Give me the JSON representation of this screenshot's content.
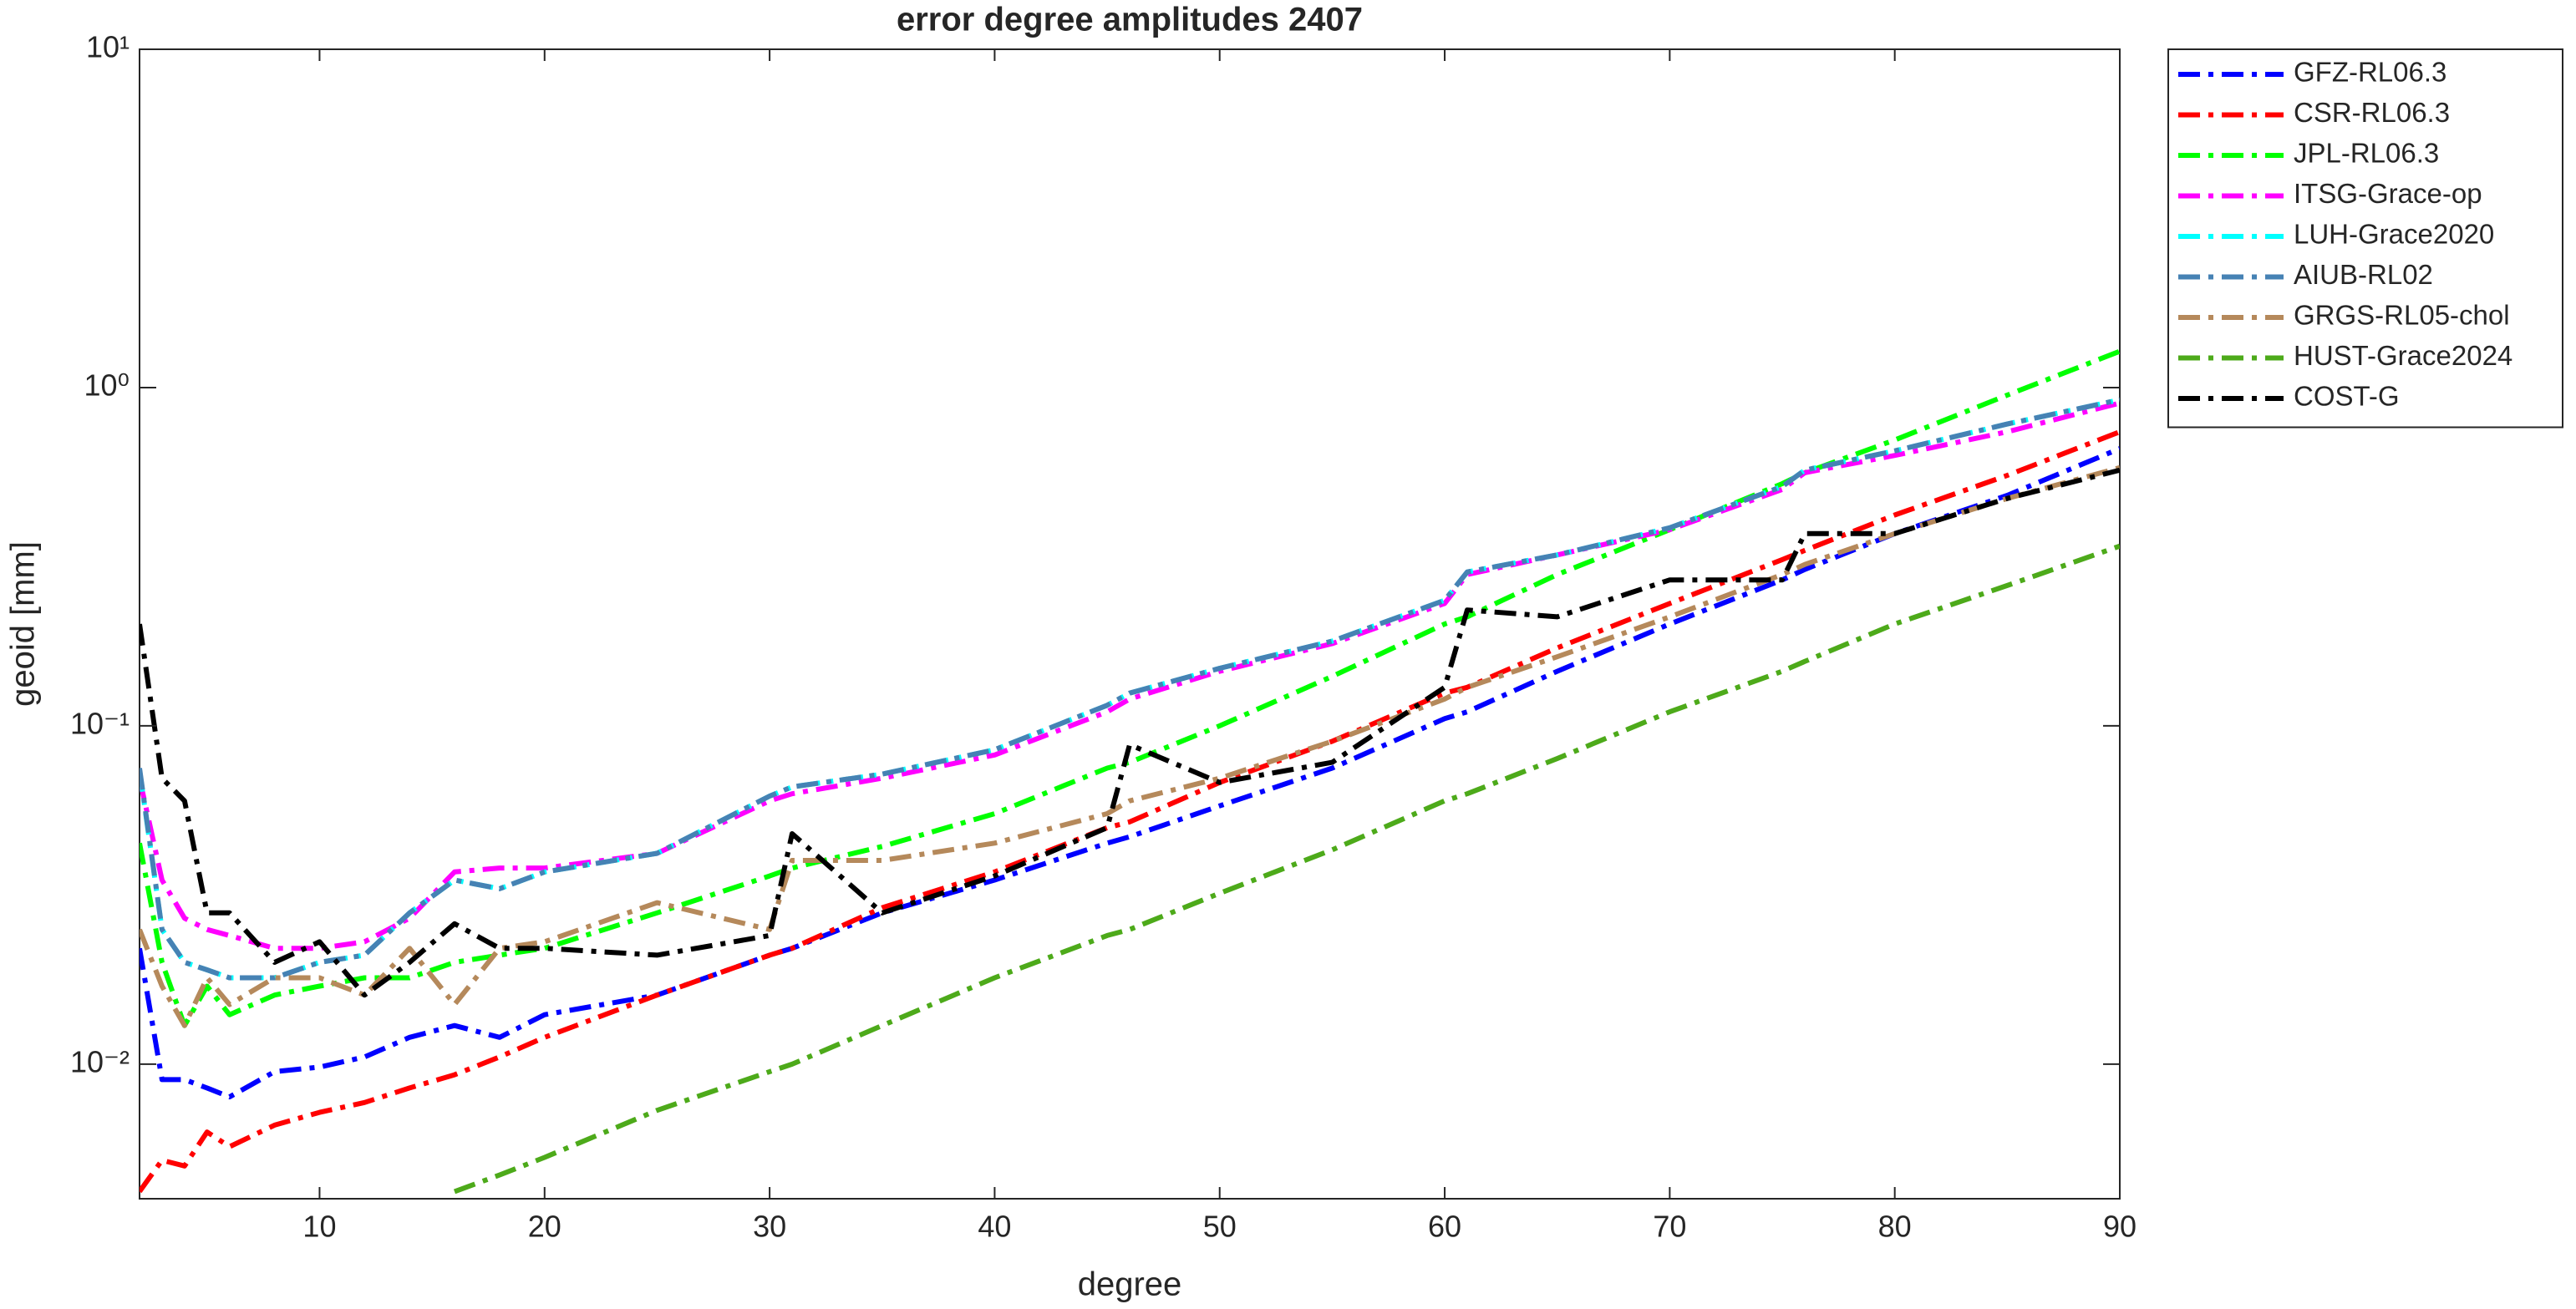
{
  "chart_data": {
    "type": "line",
    "title": "error degree amplitudes 2407",
    "xlabel": "degree",
    "ylabel": "geoid [mm]",
    "x": [
      2,
      3,
      4,
      5,
      6,
      8,
      10,
      12,
      14,
      16,
      18,
      20,
      25,
      30,
      31,
      35,
      40,
      45,
      46,
      50,
      55,
      60,
      61,
      65,
      70,
      75,
      76,
      80,
      85,
      90
    ],
    "xlim": [
      2,
      90
    ],
    "xticks": [
      10,
      20,
      30,
      40,
      50,
      60,
      70,
      80,
      90
    ],
    "ylim": [
      0.004,
      10
    ],
    "yscale": "log",
    "yticks": [
      {
        "value": 0.01,
        "label": "10⁻²"
      },
      {
        "value": 0.1,
        "label": "10⁻¹"
      },
      {
        "value": 1,
        "label": "10⁰"
      },
      {
        "value": 10,
        "label": "10¹"
      }
    ],
    "legend_location": "northeastoutside",
    "series": [
      {
        "name": "GFZ-RL06.3",
        "color": "#0000ff",
        "values": [
          0.022,
          0.009,
          0.009,
          0.0085,
          0.008,
          0.0095,
          0.0098,
          0.0105,
          0.012,
          0.013,
          0.012,
          0.014,
          0.016,
          0.021,
          0.022,
          0.028,
          0.035,
          0.045,
          0.047,
          0.058,
          0.075,
          0.105,
          0.11,
          0.145,
          0.2,
          0.27,
          0.29,
          0.37,
          0.48,
          0.66
        ]
      },
      {
        "name": "CSR-RL06.3",
        "color": "#ff0000",
        "values": [
          0.0042,
          0.0052,
          0.005,
          0.0063,
          0.0057,
          0.0066,
          0.0072,
          0.0077,
          0.0085,
          0.0093,
          0.0105,
          0.012,
          0.016,
          0.021,
          0.022,
          0.029,
          0.037,
          0.05,
          0.052,
          0.068,
          0.09,
          0.125,
          0.13,
          0.17,
          0.23,
          0.31,
          0.33,
          0.42,
          0.55,
          0.74
        ]
      },
      {
        "name": "JPL-RL06.3",
        "color": "#00ff00",
        "values": [
          0.045,
          0.02,
          0.013,
          0.017,
          0.014,
          0.016,
          0.017,
          0.018,
          0.018,
          0.02,
          0.021,
          0.022,
          0.028,
          0.036,
          0.038,
          0.044,
          0.055,
          0.075,
          0.078,
          0.1,
          0.14,
          0.2,
          0.21,
          0.28,
          0.38,
          0.52,
          0.56,
          0.7,
          0.95,
          1.28
        ]
      },
      {
        "name": "ITSG-Grace-op",
        "color": "#ff00ff",
        "values": [
          0.07,
          0.035,
          0.027,
          0.025,
          0.024,
          0.022,
          0.022,
          0.023,
          0.027,
          0.037,
          0.038,
          0.038,
          0.042,
          0.06,
          0.063,
          0.07,
          0.082,
          0.11,
          0.12,
          0.145,
          0.175,
          0.23,
          0.28,
          0.32,
          0.38,
          0.5,
          0.56,
          0.63,
          0.74,
          0.9
        ]
      },
      {
        "name": "LUH-Grace2020",
        "color": "#00ffff",
        "values": [
          0.074,
          0.025,
          0.02,
          0.019,
          0.018,
          0.018,
          0.02,
          0.021,
          0.028,
          0.035,
          0.033,
          0.037,
          0.042,
          0.062,
          0.066,
          0.072,
          0.085,
          0.115,
          0.125,
          0.148,
          0.178,
          0.235,
          0.285,
          0.32,
          0.385,
          0.51,
          0.57,
          0.65,
          0.78,
          0.92
        ]
      },
      {
        "name": "AIUB-RL02",
        "color": "#4682b4",
        "values": [
          0.075,
          0.025,
          0.02,
          0.019,
          0.018,
          0.018,
          0.02,
          0.021,
          0.028,
          0.035,
          0.033,
          0.037,
          0.042,
          0.062,
          0.066,
          0.072,
          0.085,
          0.115,
          0.125,
          0.148,
          0.178,
          0.235,
          0.285,
          0.32,
          0.385,
          0.51,
          0.57,
          0.65,
          0.78,
          0.92
        ]
      },
      {
        "name": "GRGS-RL05-chol",
        "color": "#b5895b",
        "values": [
          0.025,
          0.017,
          0.013,
          0.018,
          0.015,
          0.018,
          0.018,
          0.016,
          0.022,
          0.015,
          0.022,
          0.023,
          0.03,
          0.025,
          0.04,
          0.04,
          0.045,
          0.055,
          0.06,
          0.07,
          0.09,
          0.12,
          0.13,
          0.16,
          0.21,
          0.28,
          0.3,
          0.37,
          0.47,
          0.58
        ]
      },
      {
        "name": "HUST-Grace2024",
        "color": "#4daa1a",
        "values": [
          null,
          null,
          null,
          null,
          null,
          null,
          null,
          null,
          null,
          0.0042,
          0.0047,
          0.0053,
          0.0073,
          0.0095,
          0.01,
          0.013,
          0.018,
          0.024,
          0.025,
          0.032,
          0.043,
          0.06,
          0.063,
          0.08,
          0.11,
          0.145,
          0.155,
          0.2,
          0.26,
          0.34
        ]
      },
      {
        "name": "COST-G",
        "color": "#000000",
        "values": [
          0.2,
          0.07,
          0.06,
          0.028,
          0.028,
          0.02,
          0.023,
          0.016,
          0.02,
          0.026,
          0.022,
          0.022,
          0.021,
          0.024,
          0.048,
          0.028,
          0.036,
          0.05,
          0.088,
          0.068,
          0.078,
          0.13,
          0.22,
          0.21,
          0.27,
          0.27,
          0.37,
          0.37,
          0.47,
          0.57
        ]
      }
    ]
  }
}
